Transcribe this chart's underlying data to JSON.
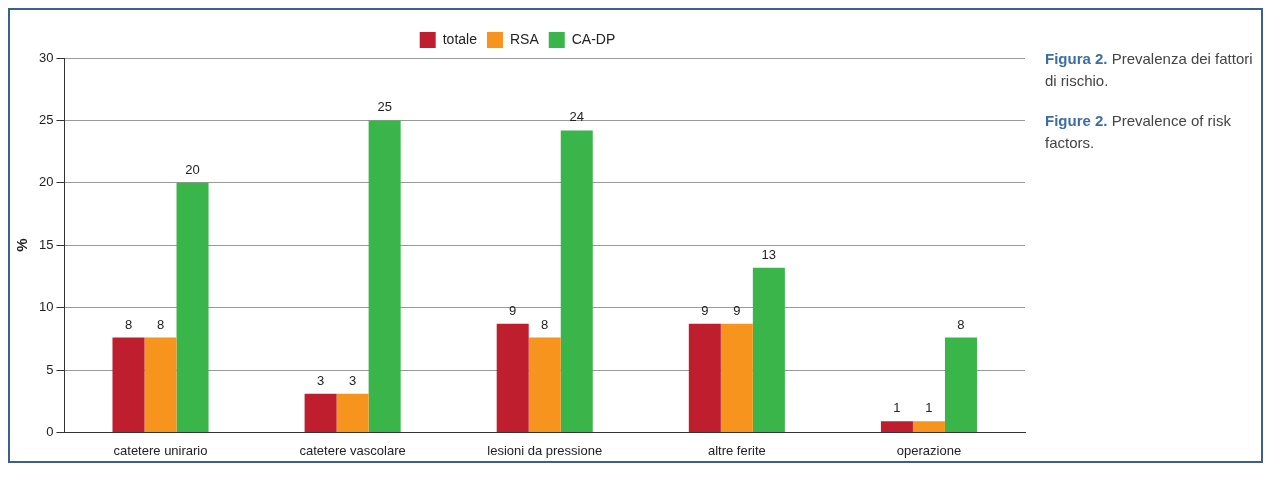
{
  "chart_data": {
    "type": "bar",
    "categories": [
      "catetere unirario",
      "catetere vascolare",
      "lesioni da pressione",
      "altre ferite",
      "operazione"
    ],
    "series": [
      {
        "name": "totale",
        "color": "#be1e2d",
        "values": [
          7.6,
          3.1,
          8.7,
          8.7,
          0.9
        ],
        "value_labels": [
          "8",
          "3",
          "9",
          "9",
          "1"
        ]
      },
      {
        "name": "RSA",
        "color": "#f7941d",
        "values": [
          7.6,
          3.1,
          7.6,
          8.7,
          0.9
        ],
        "value_labels": [
          "8",
          "3",
          "8",
          "9",
          "1"
        ]
      },
      {
        "name": "CA-DP",
        "color": "#39b54a",
        "values": [
          20,
          25,
          24.2,
          13.2,
          7.6
        ],
        "value_labels": [
          "20",
          "25",
          "24",
          "13",
          "8"
        ]
      }
    ],
    "ylabel": "%",
    "ylim": [
      0,
      30
    ],
    "yticks": [
      0,
      5,
      10,
      15,
      20,
      25,
      30
    ],
    "grid": "y",
    "legend": "top",
    "annotations": [
      "Figura 2. Prevalenza dei fattori di rischio.",
      "Figure 2. Prevalence of risk factors."
    ]
  }
}
